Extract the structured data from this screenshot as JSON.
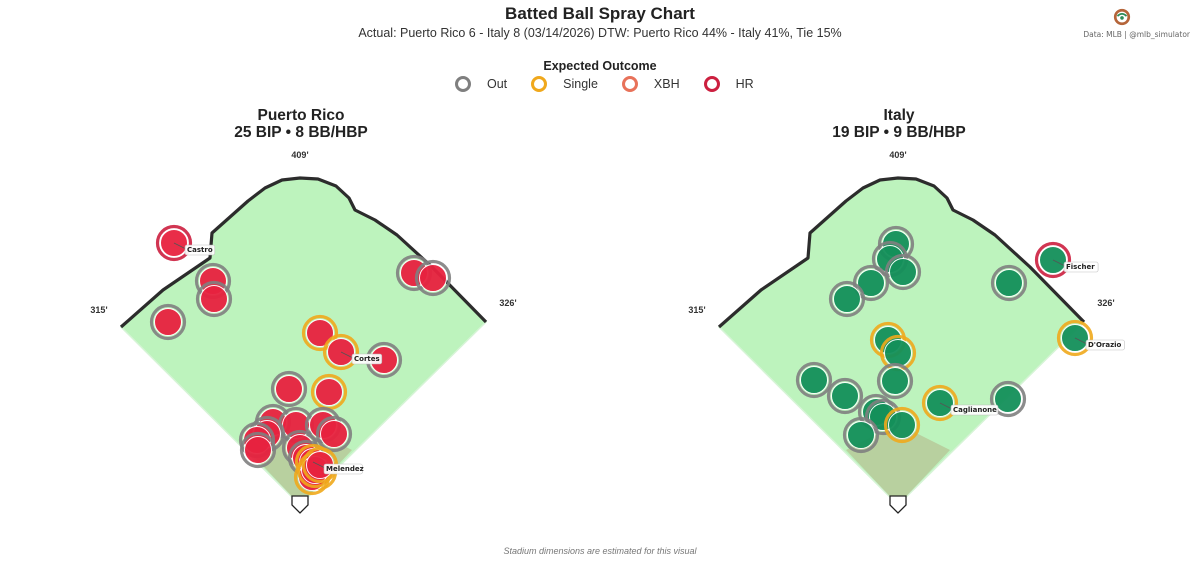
{
  "header": {
    "title": "Batted Ball Spray Chart",
    "subtitle": "Actual: Puerto Rico 6 - Italy 8  (03/14/2026)    DTW: Puerto Rico 44% - Italy 41%, Tie 15%",
    "credit": "Data: MLB  |  @mlb_simulator"
  },
  "legend": {
    "title": "Expected Outcome",
    "items": [
      {
        "label": "Out",
        "color": "#7f7f7f"
      },
      {
        "label": "Single",
        "color": "#f0a81c"
      },
      {
        "label": "XBH",
        "color": "#e8725a"
      },
      {
        "label": "HR",
        "color": "#cc1f3f"
      }
    ]
  },
  "footer_note": "Stadium dimensions are estimated for this visual",
  "chart_data": [
    {
      "type": "scatter",
      "team": "Puerto Rico",
      "title_line1": "Puerto Rico",
      "title_line2": "25 BIP  •  8 BB/HBP",
      "fill_color": "#e8223f",
      "distances": {
        "left": "315'",
        "center": "409'",
        "right": "326'"
      },
      "points": [
        {
          "x": -126,
          "y": 262,
          "outcome": "HR",
          "label": "Castro"
        },
        {
          "x": -87,
          "y": 224,
          "outcome": "Out"
        },
        {
          "x": -86,
          "y": 206,
          "outcome": "Out"
        },
        {
          "x": -132,
          "y": 183,
          "outcome": "Out"
        },
        {
          "x": 114,
          "y": 232,
          "outcome": "Out"
        },
        {
          "x": 133,
          "y": 227,
          "outcome": "Out"
        },
        {
          "x": 20,
          "y": 172,
          "outcome": "Single"
        },
        {
          "x": 41,
          "y": 153,
          "outcome": "Single",
          "label": "Cortes"
        },
        {
          "x": 84,
          "y": 145,
          "outcome": "Out"
        },
        {
          "x": -11,
          "y": 116,
          "outcome": "Out"
        },
        {
          "x": 29,
          "y": 113,
          "outcome": "Single"
        },
        {
          "x": -27,
          "y": 83,
          "outcome": "Out"
        },
        {
          "x": -4,
          "y": 80,
          "outcome": "Out"
        },
        {
          "x": -33,
          "y": 71,
          "outcome": "Out"
        },
        {
          "x": 23,
          "y": 80,
          "outcome": "Out"
        },
        {
          "x": 34,
          "y": 71,
          "outcome": "Out"
        },
        {
          "x": -43,
          "y": 65,
          "outcome": "Out"
        },
        {
          "x": -42,
          "y": 55,
          "outcome": "Out"
        },
        {
          "x": 0,
          "y": 57,
          "outcome": "Out"
        },
        {
          "x": 6,
          "y": 47,
          "outcome": "Out"
        },
        {
          "x": 13,
          "y": 43,
          "outcome": "Single",
          "label": "Melendez"
        },
        {
          "x": 19,
          "y": 33,
          "outcome": "Single"
        },
        {
          "x": 12,
          "y": 28,
          "outcome": "Single"
        },
        {
          "x": 15,
          "y": 35,
          "outcome": "Single"
        },
        {
          "x": 20,
          "y": 40,
          "outcome": "Single"
        }
      ]
    },
    {
      "type": "scatter",
      "team": "Italy",
      "title_line1": "Italy",
      "title_line2": "19 BIP  •  9 BB/HBP",
      "fill_color": "#14905a",
      "distances": {
        "left": "315'",
        "center": "409'",
        "right": "326'"
      },
      "points": [
        {
          "x": 155,
          "y": 245,
          "outcome": "HR",
          "label": "Fischer"
        },
        {
          "x": -2,
          "y": 261,
          "outcome": "Out"
        },
        {
          "x": -8,
          "y": 246,
          "outcome": "Out"
        },
        {
          "x": 5,
          "y": 233,
          "outcome": "Out"
        },
        {
          "x": -27,
          "y": 222,
          "outcome": "Out"
        },
        {
          "x": -51,
          "y": 206,
          "outcome": "Out"
        },
        {
          "x": 111,
          "y": 222,
          "outcome": "Out"
        },
        {
          "x": 177,
          "y": 167,
          "outcome": "Single",
          "label": "D'Orazio"
        },
        {
          "x": -10,
          "y": 165,
          "outcome": "Single"
        },
        {
          "x": 0,
          "y": 152,
          "outcome": "Single"
        },
        {
          "x": -84,
          "y": 125,
          "outcome": "Out"
        },
        {
          "x": -3,
          "y": 124,
          "outcome": "Out"
        },
        {
          "x": -53,
          "y": 109,
          "outcome": "Out"
        },
        {
          "x": 42,
          "y": 102,
          "outcome": "Single",
          "label": "Caglianone"
        },
        {
          "x": 110,
          "y": 106,
          "outcome": "Out"
        },
        {
          "x": -22,
          "y": 93,
          "outcome": "Out"
        },
        {
          "x": -15,
          "y": 88,
          "outcome": "Out"
        },
        {
          "x": 4,
          "y": 80,
          "outcome": "Single"
        },
        {
          "x": -37,
          "y": 70,
          "outcome": "Out"
        }
      ]
    }
  ]
}
